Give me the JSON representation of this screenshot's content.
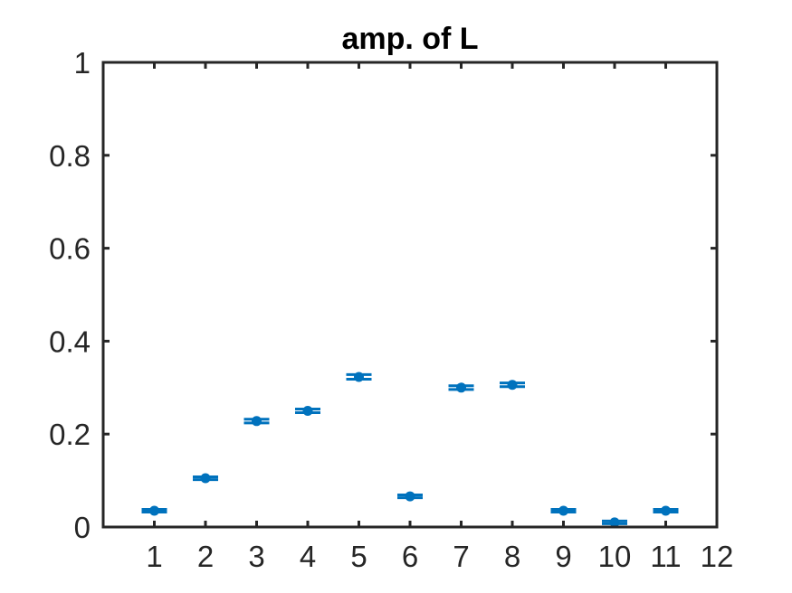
{
  "chart_data": {
    "type": "scatter",
    "title": "amp. of L",
    "xlabel": "",
    "ylabel": "",
    "xlim": [
      0,
      12
    ],
    "ylim": [
      0,
      1
    ],
    "xticks": [
      1,
      2,
      3,
      4,
      5,
      6,
      7,
      8,
      9,
      10,
      11,
      12
    ],
    "yticks": [
      0,
      0.2,
      0.4,
      0.6,
      0.8,
      1
    ],
    "ytick_labels": [
      "0",
      "0.2",
      "0.4",
      "0.6",
      "0.8",
      "1"
    ],
    "grid": false,
    "series": [
      {
        "color": "#0072bd",
        "marker": "dot-with-errorbar",
        "x": [
          1,
          2,
          3,
          4,
          5,
          6,
          7,
          8,
          9,
          10,
          11
        ],
        "y": [
          0.035,
          0.105,
          0.228,
          0.25,
          0.323,
          0.066,
          0.3,
          0.306,
          0.035,
          0.01,
          0.035
        ],
        "err": [
          0.003,
          0.003,
          0.004,
          0.004,
          0.005,
          0.003,
          0.004,
          0.004,
          0.003,
          0.003,
          0.003
        ]
      }
    ]
  }
}
